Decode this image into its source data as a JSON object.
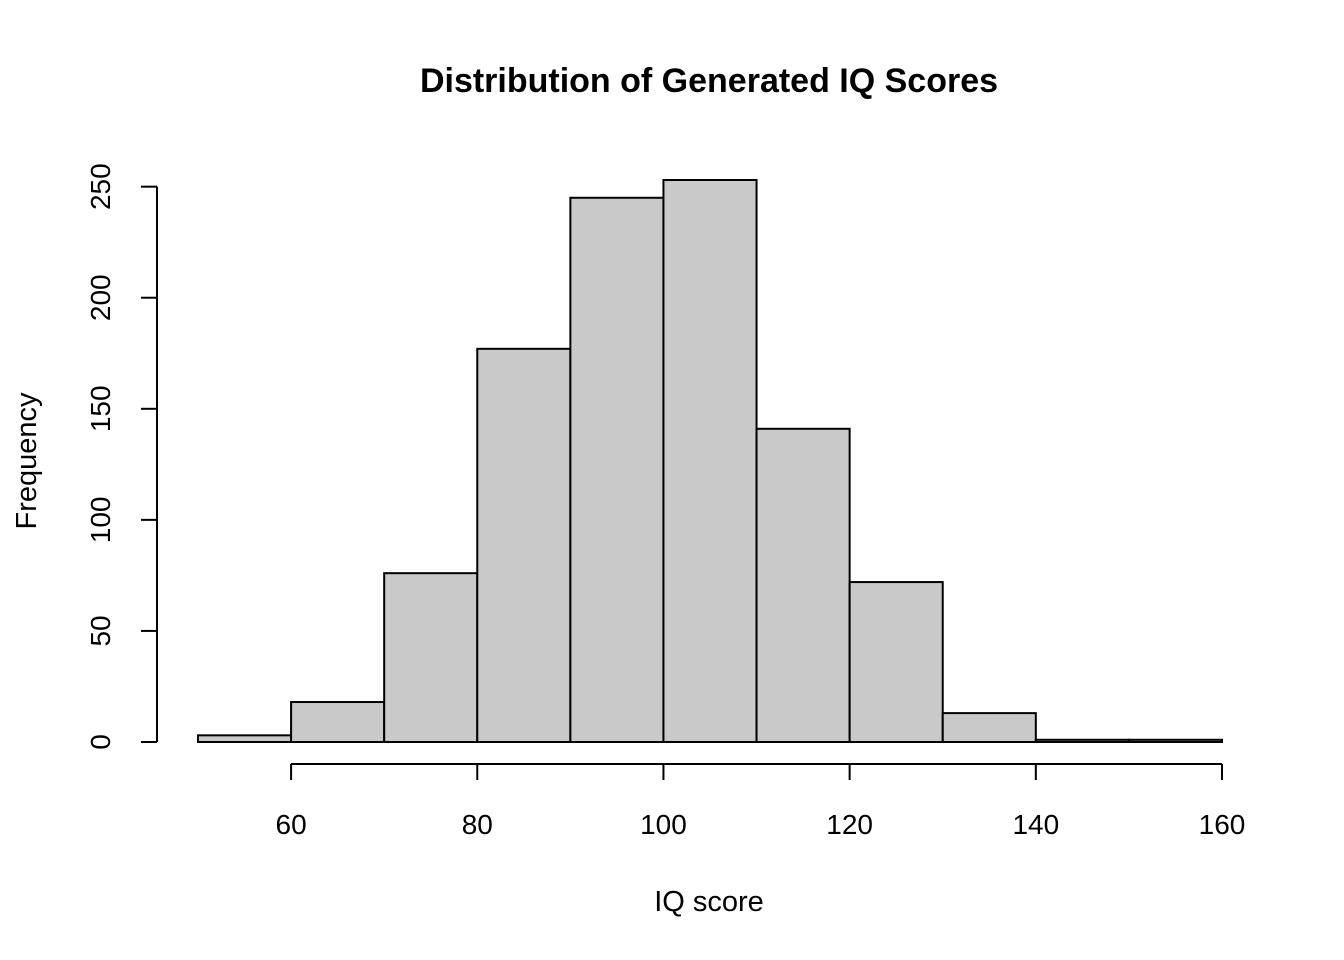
{
  "chart_data": {
    "type": "bar",
    "title": "Distribution of Generated IQ Scores",
    "xlabel": "IQ score",
    "ylabel": "Frequency",
    "bins": [
      {
        "start": 50,
        "end": 60,
        "count": 3
      },
      {
        "start": 60,
        "end": 70,
        "count": 18
      },
      {
        "start": 70,
        "end": 80,
        "count": 76
      },
      {
        "start": 80,
        "end": 90,
        "count": 177
      },
      {
        "start": 90,
        "end": 100,
        "count": 245
      },
      {
        "start": 100,
        "end": 110,
        "count": 253
      },
      {
        "start": 110,
        "end": 120,
        "count": 141
      },
      {
        "start": 120,
        "end": 130,
        "count": 72
      },
      {
        "start": 130,
        "end": 140,
        "count": 13
      },
      {
        "start": 140,
        "end": 150,
        "count": 1
      },
      {
        "start": 150,
        "end": 160,
        "count": 1
      }
    ],
    "xlim": [
      50,
      160
    ],
    "ylim": [
      0,
      253
    ],
    "x_ticks": [
      60,
      80,
      100,
      120,
      140,
      160
    ],
    "y_ticks": [
      0,
      50,
      100,
      150,
      200,
      250
    ],
    "bar_color": "#c9c9c9",
    "border_color": "#000000",
    "grid": false,
    "legend": "none"
  }
}
